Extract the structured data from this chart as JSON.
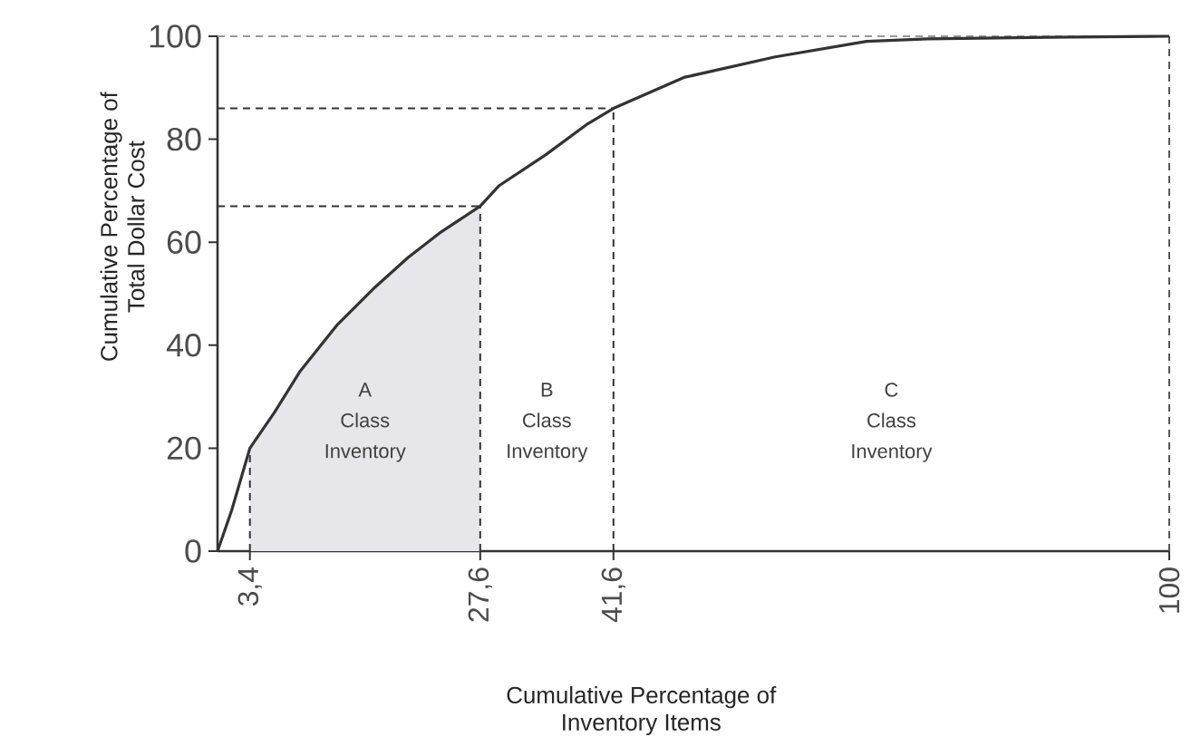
{
  "chart_data": {
    "type": "line",
    "xlabel": "Cumulative Percentage of Inventory Items",
    "ylabel": "Cumulative Percentage of Total Dollar Cost",
    "series": [
      {
        "type": "area",
        "color": "#e6e6eb",
        "x": [
          3.4,
          6,
          8.7,
          12.6,
          16.4,
          20,
          23.5,
          27.6
        ],
        "values": [
          20,
          27,
          35,
          44,
          51,
          57,
          62,
          67
        ]
      },
      {
        "color": "#333333",
        "x": [
          0,
          1.5,
          3.4,
          6,
          8.7,
          12.6,
          16.4,
          20,
          23.5,
          27.6,
          29.6,
          34.5,
          38.9,
          41.6,
          49,
          58.6,
          68.2,
          74.6,
          87.4,
          100
        ],
        "values": [
          0,
          8,
          20,
          27,
          35,
          44,
          51,
          57,
          62,
          67,
          71,
          77,
          83,
          86,
          92,
          96,
          99,
          99.5,
          99.8,
          100
        ]
      }
    ],
    "xlim": [
      0,
      100
    ],
    "ylim": [
      0,
      100
    ],
    "xticks": [
      {
        "value": 3.4,
        "label": "3,4"
      },
      {
        "value": 27.6,
        "label": "27,6"
      },
      {
        "value": 41.6,
        "label": "41,6"
      },
      100
    ],
    "yticks": [
      0,
      20,
      40,
      60,
      80,
      100
    ],
    "ref_lines": [
      {
        "axis": "x",
        "value": 3.4,
        "line_style": "dashed",
        "color": "#333333"
      },
      {
        "axis": "x",
        "value": 27.6,
        "line_style": "dashed",
        "color": "#333333"
      },
      {
        "axis": "x",
        "value": 41.6,
        "line_style": "dashed",
        "color": "#333333"
      },
      {
        "axis": "x",
        "value": 100,
        "line_style": "dashed",
        "color": "#555555"
      },
      {
        "axis": "y",
        "value": 67,
        "line_style": "dashed",
        "color": "#333333"
      },
      {
        "axis": "y",
        "value": 86,
        "line_style": "dashed",
        "color": "#333333"
      },
      {
        "axis": "y",
        "value": 100,
        "line_style": "dashed",
        "color": "#999999"
      }
    ],
    "annotations": [
      "A Class Inventory",
      "B Class Inventory",
      "C Class Inventory"
    ]
  }
}
